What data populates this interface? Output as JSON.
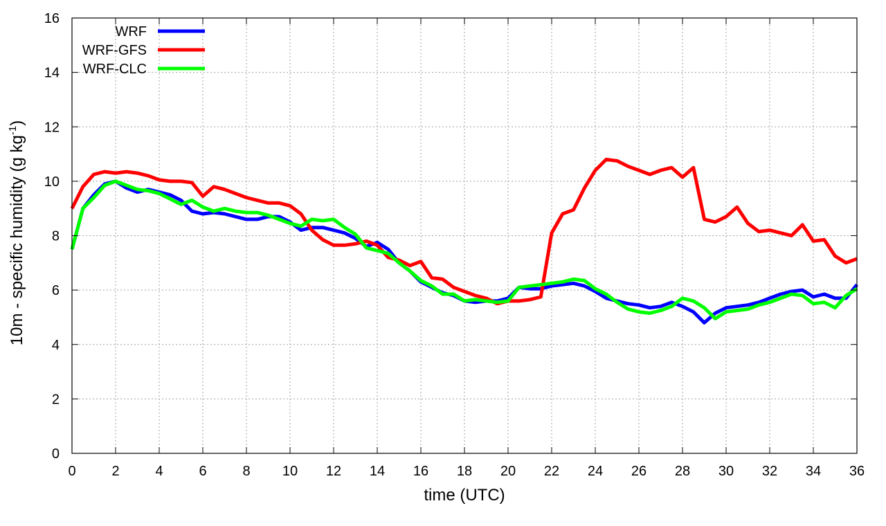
{
  "chart_data": {
    "type": "line",
    "xlabel": "time (UTC)",
    "ylabel": "10m - specific humidity (g kg-1)",
    "ylabel_parts": {
      "main": "10m - specific humidity (g kg",
      "sup": "-1",
      "end": ")"
    },
    "xlim": [
      0,
      36
    ],
    "ylim": [
      0,
      16
    ],
    "xticks": [
      0,
      2,
      4,
      6,
      8,
      10,
      12,
      14,
      16,
      18,
      20,
      22,
      24,
      26,
      28,
      30,
      32,
      34,
      36
    ],
    "yticks": [
      0,
      2,
      4,
      6,
      8,
      10,
      12,
      14,
      16
    ],
    "grid": true,
    "legend_position": "top-left",
    "series": [
      {
        "name": "WRF",
        "color": "#0000ff",
        "x": [
          0,
          0.5,
          1,
          1.5,
          2,
          2.5,
          3,
          3.5,
          4,
          4.5,
          5,
          5.5,
          6,
          6.5,
          7,
          7.5,
          8,
          8.5,
          9,
          9.5,
          10,
          10.5,
          11,
          11.5,
          12,
          12.5,
          13,
          13.5,
          14,
          14.5,
          15,
          15.5,
          16,
          16.5,
          17,
          17.5,
          18,
          18.5,
          19,
          19.5,
          20,
          20.5,
          21,
          21.5,
          22,
          22.5,
          23,
          23.5,
          24,
          24.5,
          25,
          25.5,
          26,
          26.5,
          27,
          27.5,
          28,
          28.5,
          29,
          29.5,
          30,
          30.5,
          31,
          31.5,
          32,
          32.5,
          33,
          33.5,
          34,
          34.5,
          35,
          35.5,
          36
        ],
        "y": [
          7.5,
          9.0,
          9.5,
          9.9,
          10.0,
          9.75,
          9.6,
          9.7,
          9.6,
          9.5,
          9.3,
          8.9,
          8.8,
          8.85,
          8.8,
          8.7,
          8.6,
          8.6,
          8.7,
          8.7,
          8.5,
          8.2,
          8.3,
          8.3,
          8.2,
          8.1,
          7.9,
          7.6,
          7.75,
          7.5,
          7.0,
          6.7,
          6.3,
          6.1,
          5.9,
          5.8,
          5.6,
          5.55,
          5.6,
          5.6,
          5.7,
          6.1,
          6.05,
          6.05,
          6.15,
          6.2,
          6.25,
          6.15,
          5.95,
          5.7,
          5.6,
          5.5,
          5.45,
          5.35,
          5.4,
          5.55,
          5.4,
          5.2,
          4.8,
          5.15,
          5.35,
          5.4,
          5.45,
          5.55,
          5.7,
          5.85,
          5.95,
          6.0,
          5.75,
          5.85,
          5.7,
          5.7,
          6.2
        ]
      },
      {
        "name": "WRF-GFS",
        "color": "#ff0000",
        "x": [
          0,
          0.5,
          1,
          1.5,
          2,
          2.5,
          3,
          3.5,
          4,
          4.5,
          5,
          5.5,
          6,
          6.5,
          7,
          7.5,
          8,
          8.5,
          9,
          9.5,
          10,
          10.5,
          11,
          11.5,
          12,
          12.5,
          13,
          13.5,
          14,
          14.5,
          15,
          15.5,
          16,
          16.5,
          17,
          17.5,
          18,
          18.5,
          19,
          19.5,
          20,
          20.5,
          21,
          21.5,
          22,
          22.5,
          23,
          23.5,
          24,
          24.5,
          25,
          25.5,
          26,
          26.5,
          27,
          27.5,
          28,
          28.5,
          29,
          29.5,
          30,
          30.5,
          31,
          31.5,
          32,
          32.5,
          33,
          33.5,
          34,
          34.5,
          35,
          35.5,
          36
        ],
        "y": [
          9.0,
          9.8,
          10.25,
          10.35,
          10.3,
          10.35,
          10.3,
          10.2,
          10.05,
          10.0,
          10.0,
          9.95,
          9.45,
          9.8,
          9.7,
          9.55,
          9.4,
          9.3,
          9.2,
          9.2,
          9.1,
          8.8,
          8.2,
          7.85,
          7.65,
          7.65,
          7.7,
          7.8,
          7.65,
          7.2,
          7.1,
          6.9,
          7.05,
          6.45,
          6.4,
          6.1,
          5.95,
          5.8,
          5.7,
          5.5,
          5.6,
          5.6,
          5.65,
          5.75,
          8.1,
          8.8,
          8.95,
          9.75,
          10.4,
          10.8,
          10.75,
          10.55,
          10.4,
          10.25,
          10.4,
          10.5,
          10.15,
          10.5,
          8.6,
          8.5,
          8.7,
          9.05,
          8.45,
          8.15,
          8.2,
          8.1,
          8.0,
          8.4,
          7.8,
          7.85,
          7.25,
          7.0,
          7.15
        ]
      },
      {
        "name": "WRF-CLC",
        "color": "#00ff00",
        "x": [
          0,
          0.5,
          1,
          1.5,
          2,
          2.5,
          3,
          3.5,
          4,
          4.5,
          5,
          5.5,
          6,
          6.5,
          7,
          7.5,
          8,
          8.5,
          9,
          9.5,
          10,
          10.5,
          11,
          11.5,
          12,
          12.5,
          13,
          13.5,
          14,
          14.5,
          15,
          15.5,
          16,
          16.5,
          17,
          17.5,
          18,
          18.5,
          19,
          19.5,
          20,
          20.5,
          21,
          21.5,
          22,
          22.5,
          23,
          23.5,
          24,
          24.5,
          25,
          25.5,
          26,
          26.5,
          27,
          27.5,
          28,
          28.5,
          29,
          29.5,
          30,
          30.5,
          31,
          31.5,
          32,
          32.5,
          33,
          33.5,
          34,
          34.5,
          35,
          35.5,
          36
        ],
        "y": [
          7.5,
          9.0,
          9.4,
          9.85,
          10.0,
          9.85,
          9.7,
          9.65,
          9.55,
          9.35,
          9.15,
          9.3,
          9.05,
          8.9,
          9.0,
          8.9,
          8.85,
          8.85,
          8.75,
          8.6,
          8.45,
          8.35,
          8.6,
          8.55,
          8.6,
          8.3,
          8.05,
          7.55,
          7.45,
          7.35,
          7.0,
          6.7,
          6.35,
          6.15,
          5.85,
          5.85,
          5.6,
          5.65,
          5.6,
          5.55,
          5.6,
          6.1,
          6.15,
          6.2,
          6.25,
          6.3,
          6.4,
          6.35,
          6.05,
          5.85,
          5.55,
          5.3,
          5.2,
          5.15,
          5.25,
          5.4,
          5.7,
          5.6,
          5.35,
          4.95,
          5.2,
          5.25,
          5.3,
          5.45,
          5.55,
          5.7,
          5.85,
          5.8,
          5.5,
          5.55,
          5.35,
          5.8,
          6.05
        ]
      }
    ]
  }
}
